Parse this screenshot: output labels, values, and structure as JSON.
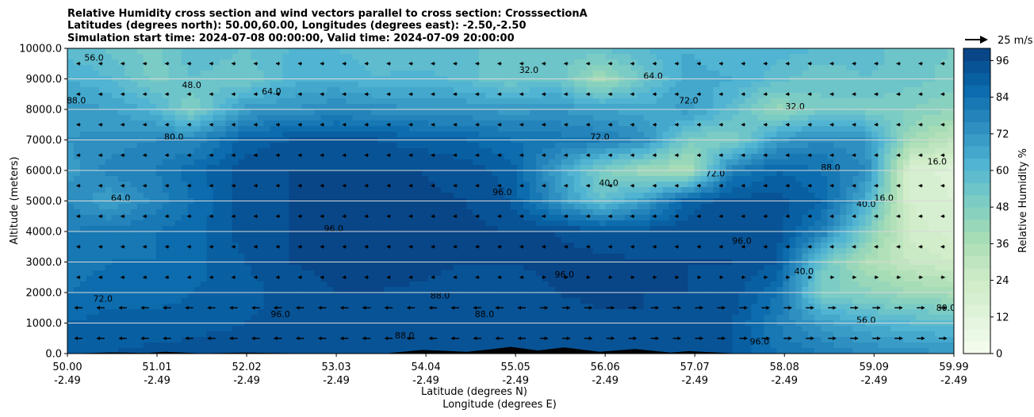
{
  "chart_data": {
    "type": "heatmap",
    "title_lines": [
      "Relative Humidity cross section and wind vectors parallel to cross section: CrosssectionA",
      "Latitudes (degrees north): 50.00,60.00, Longitudes (degrees east): -2.50,-2.50",
      "Simulation start time: 2024-07-08 00:00:00, Valid time: 2024-07-09 20:00:00"
    ],
    "ylabel": "Altitude (meters)",
    "xlabel_lines": [
      "Latitude (degrees N)",
      "Longitude (degrees E)"
    ],
    "ylim": [
      0,
      10000
    ],
    "xlim": [
      50.0,
      59.99
    ],
    "y_ticks": [
      "0.0",
      "1000.0",
      "2000.0",
      "3000.0",
      "4000.0",
      "5000.0",
      "6000.0",
      "7000.0",
      "8000.0",
      "9000.0",
      "10000.0"
    ],
    "x_ticks": [
      {
        "lat": "50.00",
        "lon": "-2.49"
      },
      {
        "lat": "51.01",
        "lon": "-2.49"
      },
      {
        "lat": "52.02",
        "lon": "-2.49"
      },
      {
        "lat": "53.03",
        "lon": "-2.49"
      },
      {
        "lat": "54.04",
        "lon": "-2.49"
      },
      {
        "lat": "55.05",
        "lon": "-2.49"
      },
      {
        "lat": "56.06",
        "lon": "-2.49"
      },
      {
        "lat": "57.07",
        "lon": "-2.49"
      },
      {
        "lat": "58.08",
        "lon": "-2.49"
      },
      {
        "lat": "59.09",
        "lon": "-2.49"
      },
      {
        "lat": "59.99",
        "lon": "-2.49"
      }
    ],
    "grid": "horizontal",
    "colorbar": {
      "label": "Relative Humidity %",
      "ticks": [
        "0",
        "12",
        "24",
        "36",
        "48",
        "60",
        "72",
        "84",
        "96"
      ],
      "range": [
        0,
        100
      ],
      "colormap": "GnBu",
      "colors": [
        "#f7fcf0",
        "#e0f3db",
        "#ccebc5",
        "#a8ddb5",
        "#7bccc4",
        "#4eb3d3",
        "#2b8cbe",
        "#0868ac",
        "#084081"
      ]
    },
    "quiver_key": {
      "label": "25 m/s",
      "position": "top-right"
    },
    "contour_labels": [
      "16.0",
      "32.0",
      "40.0",
      "48.0",
      "56.0",
      "64.0",
      "72.0",
      "80.0",
      "88.0",
      "96.0"
    ],
    "rh_profiles": [
      {
        "lat": 50.0,
        "values": [
          90,
          88,
          84,
          82,
          80,
          76,
          70,
          72,
          70,
          64,
          58
        ]
      },
      {
        "lat": 50.5,
        "values": [
          92,
          90,
          86,
          84,
          82,
          68,
          78,
          74,
          68,
          60,
          55
        ]
      },
      {
        "lat": 51.0,
        "values": [
          93,
          90,
          86,
          84,
          84,
          78,
          80,
          76,
          62,
          50,
          50
        ]
      },
      {
        "lat": 51.4,
        "values": [
          94,
          90,
          88,
          86,
          86,
          84,
          86,
          76,
          48,
          56,
          60
        ]
      },
      {
        "lat": 52.0,
        "values": [
          95,
          92,
          90,
          92,
          94,
          94,
          94,
          90,
          70,
          52,
          56
        ]
      },
      {
        "lat": 52.5,
        "values": [
          96,
          94,
          94,
          96,
          96,
          96,
          96,
          92,
          72,
          62,
          60
        ]
      },
      {
        "lat": 53.0,
        "values": [
          96,
          96,
          96,
          97,
          97,
          96,
          96,
          94,
          76,
          64,
          60
        ]
      },
      {
        "lat": 53.5,
        "values": [
          96,
          95,
          96,
          98,
          98,
          97,
          96,
          92,
          74,
          60,
          58
        ]
      },
      {
        "lat": 54.0,
        "values": [
          95,
          94,
          95,
          98,
          98,
          97,
          96,
          90,
          72,
          62,
          56
        ]
      },
      {
        "lat": 54.5,
        "values": [
          95,
          92,
          92,
          96,
          97,
          96,
          94,
          88,
          72,
          58,
          56
        ]
      },
      {
        "lat": 55.0,
        "values": [
          94,
          92,
          94,
          96,
          96,
          92,
          90,
          84,
          70,
          52,
          56
        ]
      },
      {
        "lat": 55.5,
        "values": [
          94,
          94,
          96,
          97,
          96,
          74,
          70,
          82,
          72,
          56,
          54
        ]
      },
      {
        "lat": 56.0,
        "values": [
          95,
          95,
          97,
          97,
          94,
          56,
          50,
          80,
          68,
          38,
          56
        ]
      },
      {
        "lat": 56.5,
        "values": [
          96,
          96,
          96,
          96,
          94,
          70,
          40,
          74,
          66,
          54,
          60
        ]
      },
      {
        "lat": 57.0,
        "values": [
          94,
          94,
          96,
          96,
          95,
          90,
          36,
          50,
          70,
          66,
          64
        ]
      },
      {
        "lat": 57.5,
        "values": [
          92,
          92,
          94,
          96,
          96,
          94,
          80,
          48,
          58,
          64,
          60
        ]
      },
      {
        "lat": 58.0,
        "values": [
          84,
          80,
          84,
          92,
          94,
          94,
          88,
          70,
          42,
          58,
          62
        ]
      },
      {
        "lat": 58.5,
        "values": [
          80,
          70,
          50,
          54,
          80,
          88,
          84,
          76,
          52,
          52,
          60
        ]
      },
      {
        "lat": 59.0,
        "values": [
          76,
          64,
          46,
          36,
          50,
          64,
          76,
          72,
          50,
          56,
          58
        ]
      },
      {
        "lat": 59.5,
        "values": [
          74,
          60,
          40,
          28,
          22,
          20,
          18,
          40,
          48,
          54,
          54
        ]
      },
      {
        "lat": 59.99,
        "values": [
          72,
          58,
          38,
          24,
          18,
          16,
          14,
          30,
          44,
          50,
          52
        ]
      }
    ]
  }
}
